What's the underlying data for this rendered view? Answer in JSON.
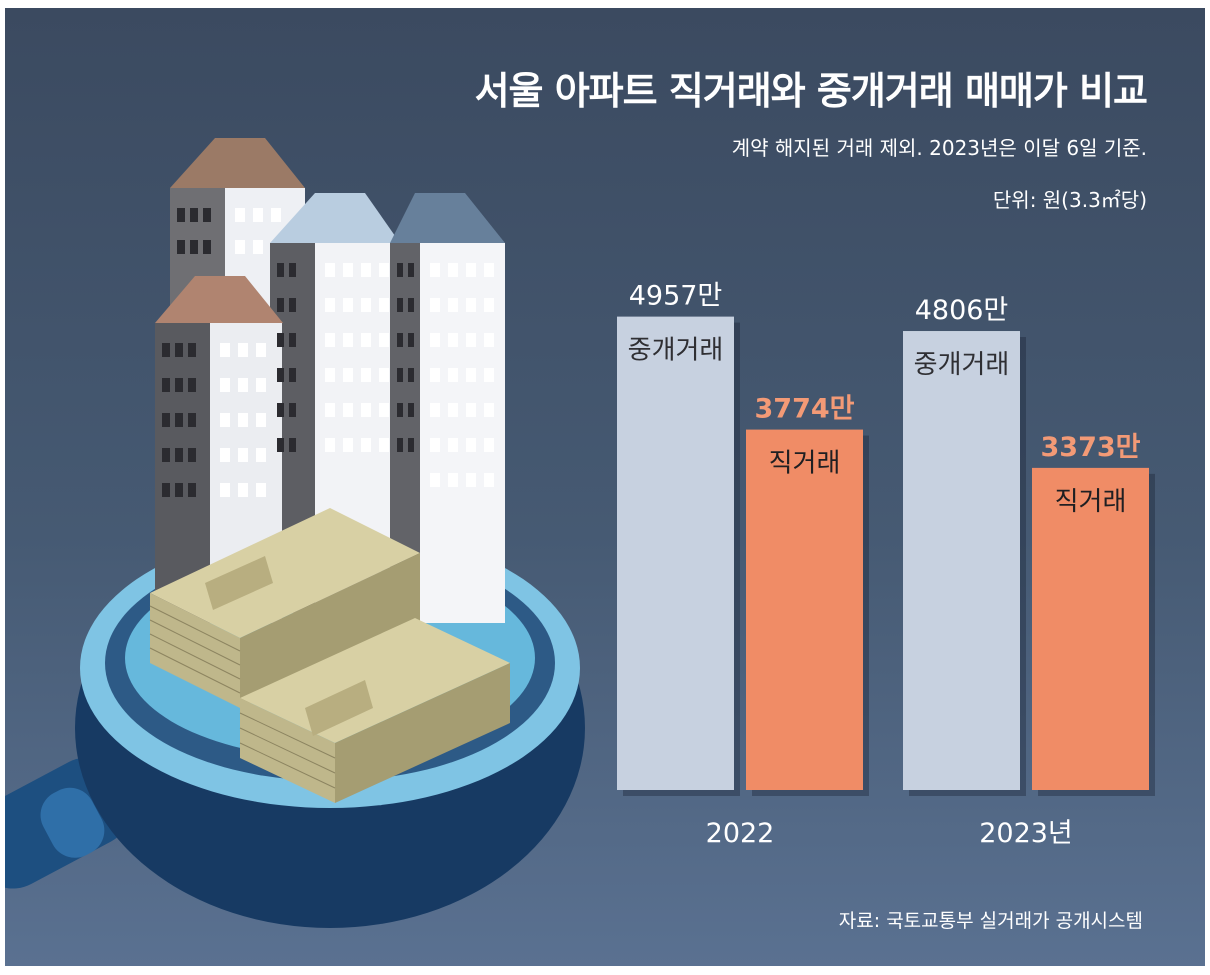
{
  "title": "서울 아파트 직거래와 중개거래 매매가 비교",
  "subtitle": "계약 해지된 거래 제외. 2023년은 이달 6일 기준.",
  "unit": "단위: 원(3.3㎡당)",
  "source": "자료: 국토교통부 실거래가 공개시스템",
  "colors": {
    "broker": "#c7d1e0",
    "direct": "#f08c66",
    "direct_value_text": "#f39a76",
    "background": "#44566f"
  },
  "chart_data": {
    "type": "bar",
    "categories": [
      "2022",
      "2023년"
    ],
    "series": [
      {
        "name": "중개거래",
        "values": [
          4957,
          4806
        ],
        "labels": [
          "4957만",
          "4806만"
        ]
      },
      {
        "name": "직거래",
        "values": [
          3774,
          3373
        ],
        "labels": [
          "3774만",
          "3373만"
        ]
      }
    ],
    "ylabel": "",
    "unit": "만원",
    "legend": "none"
  }
}
